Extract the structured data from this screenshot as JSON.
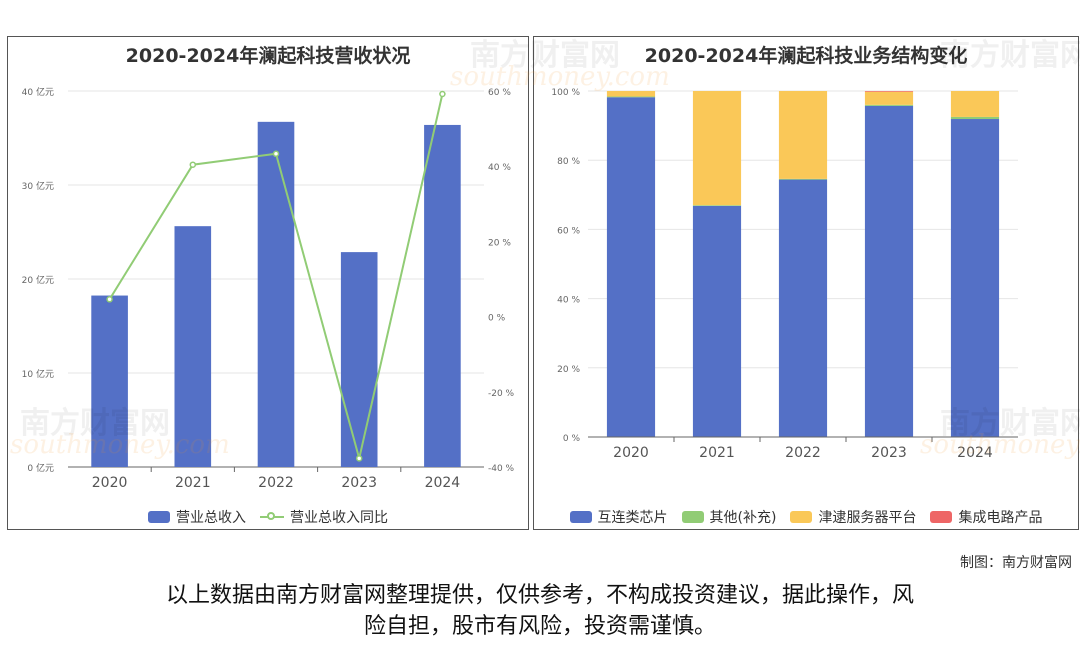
{
  "watermark": {
    "cn": "南方财富网",
    "en": "southmoney.com"
  },
  "credit": "制图：南方财富网",
  "disclaimer": {
    "line1": "以上数据由南方财富网整理提供，仅供参考，不构成投资建议，据此操作，风",
    "line2": "险自担，股市有风险，投资需谨慎。"
  },
  "chart_data": [
    {
      "type": "bar",
      "title": "2020-2024年澜起科技营收状况",
      "categories": [
        "2020",
        "2021",
        "2022",
        "2023",
        "2024"
      ],
      "series": [
        {
          "name": "营业总收入",
          "type": "bar",
          "axis": "left",
          "color": "#5470c6",
          "values": [
            18.24,
            25.62,
            36.72,
            22.86,
            36.39
          ]
        },
        {
          "name": "营业总收入同比",
          "type": "line",
          "axis": "right",
          "color": "#91cc75",
          "values": [
            4.6,
            40.4,
            43.3,
            -37.7,
            59.2
          ]
        }
      ],
      "y_left": {
        "min": 0,
        "max": 40,
        "ticks": [
          0,
          10,
          20,
          30,
          40
        ],
        "tick_labels": [
          "0 亿元",
          "10 亿元",
          "20 亿元",
          "30 亿元",
          "40 亿元"
        ]
      },
      "y_right": {
        "min": -40,
        "max": 60,
        "ticks": [
          -40,
          -20,
          0,
          20,
          40,
          60
        ],
        "tick_labels": [
          "-40 %",
          "-20 %",
          "0 %",
          "20 %",
          "40 %",
          "60 %"
        ]
      },
      "grid": true,
      "legend_position": "bottom"
    },
    {
      "type": "bar",
      "stacked": true,
      "title": "2020-2024年澜起科技业务结构变化",
      "categories": [
        "2020",
        "2021",
        "2022",
        "2023",
        "2024"
      ],
      "series": [
        {
          "name": "互连类芯片",
          "color": "#5470c6",
          "values": [
            98.2,
            66.8,
            74.4,
            95.7,
            91.9
          ]
        },
        {
          "name": "其他(补充)",
          "color": "#91cc75",
          "values": [
            0.2,
            0.2,
            0.2,
            0.3,
            0.6
          ]
        },
        {
          "name": "津逮服务器平台",
          "color": "#fac858",
          "values": [
            1.6,
            33.0,
            25.4,
            3.8,
            7.5
          ]
        },
        {
          "name": "集成电路产品",
          "color": "#ee6666",
          "values": [
            0,
            0,
            0,
            0.2,
            0
          ]
        }
      ],
      "y": {
        "min": 0,
        "max": 100,
        "ticks": [
          0,
          20,
          40,
          60,
          80,
          100
        ],
        "tick_labels": [
          "0 %",
          "20 %",
          "40 %",
          "60 %",
          "80 %",
          "100 %"
        ]
      },
      "grid": true,
      "legend_position": "bottom"
    }
  ]
}
